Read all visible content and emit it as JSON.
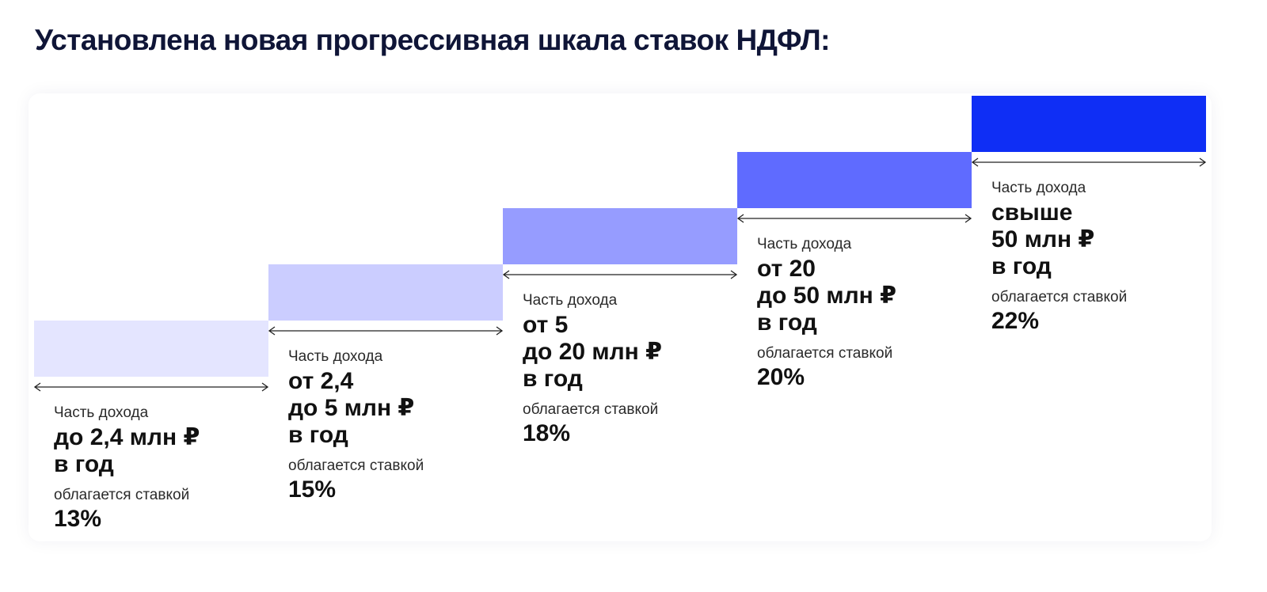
{
  "title": "Установлена новая прогрессивная шкала ставок НДФЛ:",
  "tiers": [
    {
      "caption": "Часть дохода",
      "range_lines": [
        "до 2,4 млн ₽",
        "в год"
      ],
      "rate_caption": "облагается ставкой",
      "rate_label": "13%",
      "rate": 13,
      "color": "#e4e5ff"
    },
    {
      "caption": "Часть дохода",
      "range_lines": [
        "от 2,4",
        "до 5 млн ₽",
        "в год"
      ],
      "rate_caption": "облагается ставкой",
      "rate_label": "15%",
      "rate": 15,
      "color": "#cbcdff"
    },
    {
      "caption": "Часть дохода",
      "range_lines": [
        "от 5",
        "до 20 млн ₽",
        "в год"
      ],
      "rate_caption": "облагается ставкой",
      "rate_label": "18%",
      "rate": 18,
      "color": "#969cff"
    },
    {
      "caption": "Часть дохода",
      "range_lines": [
        "от 20",
        "до 50 млн ₽",
        "в год"
      ],
      "rate_caption": "облагается ставкой",
      "rate_label": "20%",
      "rate": 20,
      "color": "#5f6bff"
    },
    {
      "caption": "Часть дохода",
      "range_lines": [
        "свыше",
        "50 млн ₽",
        "в год"
      ],
      "rate_caption": "облагается ставкой",
      "rate_label": "22%",
      "rate": 22,
      "color": "#0f2ef5"
    }
  ]
}
